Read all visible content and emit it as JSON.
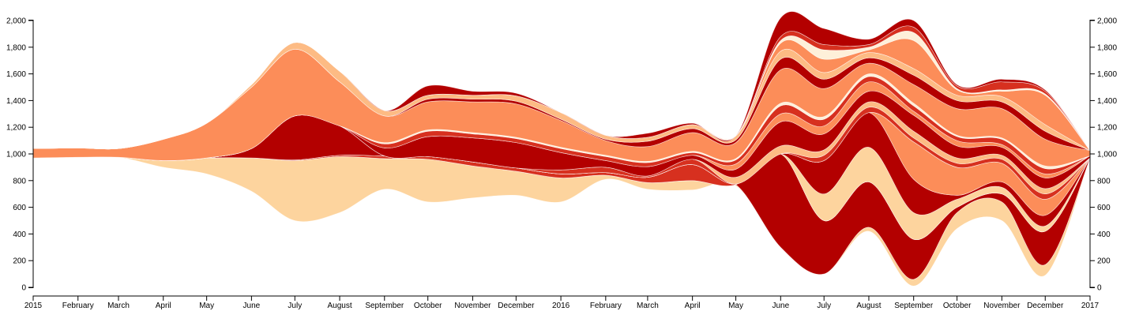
{
  "chart_data": {
    "type": "area",
    "subtype": "streamgraph",
    "title": "",
    "xlabel": "",
    "ylabel": "",
    "ylim": [
      0,
      2000
    ],
    "y_ticks": [
      0,
      200,
      400,
      600,
      800,
      1000,
      1200,
      1400,
      1600,
      1800,
      2000
    ],
    "y_tick_labels": [
      "0",
      "200",
      "400",
      "600",
      "800",
      "1,000",
      "1,200",
      "1,400",
      "1,600",
      "1,800",
      "2,000"
    ],
    "y_axis_sides": [
      "left",
      "right"
    ],
    "x_tick_labels": [
      "2015",
      "February",
      "March",
      "April",
      "May",
      "June",
      "July",
      "August",
      "September",
      "October",
      "November",
      "December",
      "2016",
      "February",
      "March",
      "April",
      "May",
      "June",
      "July",
      "August",
      "September",
      "October",
      "November",
      "December",
      "2017"
    ],
    "x_dates": [
      "2015-01-01",
      "2015-02-01",
      "2015-03-01",
      "2015-04-01",
      "2015-05-01",
      "2015-06-01",
      "2015-07-01",
      "2015-08-01",
      "2015-09-01",
      "2015-10-01",
      "2015-11-01",
      "2015-12-01",
      "2016-01-01",
      "2016-02-01",
      "2016-03-01",
      "2016-04-01",
      "2016-05-01",
      "2016-06-01",
      "2016-07-01",
      "2016-08-01",
      "2016-09-01",
      "2016-10-01",
      "2016-11-01",
      "2016-12-01",
      "2017-01-01"
    ],
    "baseline": [
      970,
      975,
      975,
      900,
      850,
      720,
      500,
      560,
      735,
      640,
      670,
      690,
      640,
      810,
      735,
      730,
      760,
      300,
      100,
      420,
      10,
      440,
      500,
      90,
      965
    ],
    "grid": false,
    "legend": "none",
    "series": [
      {
        "color": "#fdd49e",
        "values": [
          0,
          0,
          0,
          50,
          120,
          250,
          450,
          420,
          230,
          320,
          240,
          180,
          180,
          30,
          50,
          70,
          10,
          0,
          0,
          30,
          50,
          120,
          140,
          80,
          0
        ]
      },
      {
        "color": "#b30000",
        "values": [
          0,
          0,
          0,
          0,
          0,
          0,
          0,
          0,
          0,
          0,
          0,
          0,
          0,
          0,
          0,
          0,
          0,
          700,
          400,
          340,
          300,
          40,
          60,
          250,
          5
        ]
      },
      {
        "color": "#d7301f",
        "values": [
          0,
          0,
          0,
          0,
          0,
          0,
          5,
          10,
          20,
          20,
          30,
          25,
          30,
          20,
          40,
          120,
          5,
          0,
          0,
          0,
          0,
          0,
          0,
          0,
          0
        ]
      },
      {
        "color": "#fdd49e",
        "values": [
          0,
          0,
          0,
          0,
          0,
          0,
          0,
          0,
          0,
          0,
          0,
          0,
          0,
          0,
          0,
          0,
          0,
          0,
          200,
          260,
          200,
          60,
          50,
          40,
          0
        ]
      },
      {
        "color": "#b30000",
        "values": [
          0,
          0,
          0,
          0,
          0,
          0,
          0,
          0,
          0,
          0,
          0,
          0,
          0,
          0,
          0,
          0,
          0,
          0,
          250,
          260,
          250,
          30,
          40,
          80,
          0
        ]
      },
      {
        "color": "#fc8d59",
        "values": [
          0,
          0,
          0,
          0,
          0,
          0,
          0,
          0,
          0,
          0,
          0,
          0,
          0,
          0,
          0,
          0,
          0,
          0,
          0,
          0,
          280,
          210,
          140,
          120,
          0
        ]
      },
      {
        "color": "#b30000",
        "values": [
          0,
          0,
          0,
          0,
          0,
          70,
          330,
          220,
          0,
          0,
          0,
          0,
          0,
          0,
          0,
          0,
          0,
          0,
          0,
          0,
          0,
          0,
          0,
          0,
          0
        ]
      },
      {
        "color": "#d7301f",
        "values": [
          0,
          0,
          0,
          0,
          0,
          0,
          0,
          0,
          0,
          0,
          0,
          0,
          30,
          40,
          10,
          40,
          0,
          0,
          40,
          40,
          30,
          30,
          30,
          40,
          0
        ]
      },
      {
        "color": "#fdbb84",
        "values": [
          0,
          0,
          0,
          0,
          0,
          0,
          0,
          0,
          0,
          0,
          0,
          0,
          0,
          0,
          0,
          0,
          50,
          60,
          40,
          40,
          50,
          40,
          30,
          40,
          0
        ]
      },
      {
        "color": "#b30000",
        "values": [
          0,
          0,
          0,
          0,
          0,
          0,
          0,
          0,
          60,
          150,
          180,
          190,
          130,
          50,
          70,
          30,
          60,
          180,
          120,
          80,
          120,
          90,
          60,
          80,
          15
        ]
      },
      {
        "color": "#fc8d59",
        "values": [
          0,
          0,
          0,
          0,
          0,
          0,
          0,
          0,
          0,
          0,
          0,
          0,
          0,
          0,
          0,
          0,
          40,
          60,
          60,
          70,
          30,
          40,
          20,
          30,
          0
        ]
      },
      {
        "color": "#d7301f",
        "values": [
          0,
          0,
          0,
          0,
          0,
          0,
          0,
          0,
          30,
          40,
          30,
          30,
          30,
          30,
          30,
          20,
          30,
          60,
          50,
          40,
          40,
          30,
          40,
          40,
          0
        ]
      },
      {
        "color": "#fef0d9",
        "values": [
          0,
          0,
          0,
          0,
          0,
          0,
          0,
          0,
          10,
          10,
          10,
          10,
          10,
          10,
          10,
          10,
          10,
          20,
          20,
          20,
          20,
          10,
          10,
          20,
          0
        ]
      },
      {
        "color": "#fc8d59",
        "values": [
          70,
          70,
          65,
          160,
          260,
          460,
          500,
          330,
          200,
          210,
          230,
          250,
          200,
          110,
          110,
          140,
          120,
          250,
          210,
          80,
          140,
          200,
          220,
          200,
          40
        ]
      },
      {
        "color": "#b30000",
        "values": [
          0,
          0,
          0,
          0,
          0,
          0,
          0,
          0,
          0,
          20,
          20,
          20,
          10,
          10,
          40,
          30,
          20,
          80,
          70,
          40,
          70,
          60,
          50,
          60,
          0
        ]
      },
      {
        "color": "#fdbb84",
        "values": [
          0,
          0,
          0,
          0,
          0,
          20,
          50,
          80,
          40,
          30,
          30,
          40,
          50,
          30,
          30,
          30,
          30,
          60,
          50,
          40,
          50,
          40,
          40,
          50,
          0
        ]
      },
      {
        "color": "#fc8d59",
        "values": [
          0,
          0,
          0,
          0,
          0,
          0,
          0,
          0,
          0,
          0,
          0,
          0,
          0,
          0,
          0,
          0,
          0,
          60,
          100,
          20,
          210,
          40,
          40,
          220,
          0
        ]
      },
      {
        "color": "#fef0d9",
        "values": [
          0,
          0,
          0,
          0,
          0,
          0,
          0,
          0,
          0,
          0,
          0,
          0,
          0,
          0,
          0,
          0,
          0,
          20,
          70,
          20,
          60,
          10,
          10,
          10,
          0
        ]
      },
      {
        "color": "#d7301f",
        "values": [
          0,
          0,
          0,
          0,
          0,
          0,
          0,
          0,
          0,
          0,
          0,
          0,
          0,
          0,
          0,
          0,
          0,
          30,
          40,
          20,
          40,
          20,
          60,
          20,
          0
        ]
      },
      {
        "color": "#b30000",
        "values": [
          0,
          0,
          0,
          0,
          0,
          0,
          0,
          0,
          0,
          70,
          30,
          20,
          0,
          0,
          30,
          10,
          0,
          140,
          120,
          40,
          50,
          10,
          20,
          10,
          0
        ]
      }
    ]
  }
}
